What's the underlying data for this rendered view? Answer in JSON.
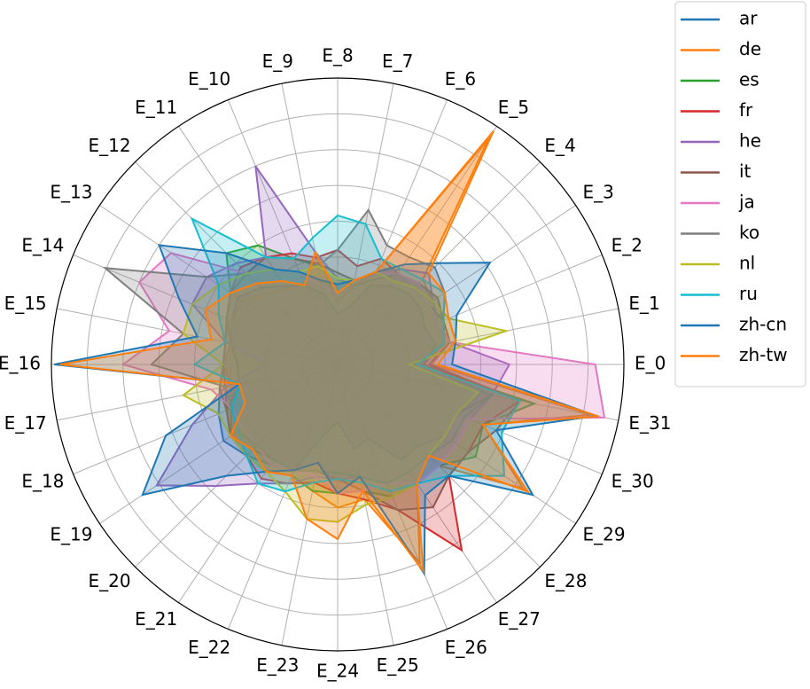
{
  "chart_data": {
    "type": "radar",
    "categories": [
      "E_0",
      "E_1",
      "E_2",
      "E_3",
      "E_4",
      "E_5",
      "E_6",
      "E_7",
      "E_8",
      "E_9",
      "E_10",
      "E_11",
      "E_12",
      "E_13",
      "E_14",
      "E_15",
      "E_16",
      "E_17",
      "E_18",
      "E_19",
      "E_20",
      "E_21",
      "E_22",
      "E_23",
      "E_24",
      "E_25",
      "E_26",
      "E_27",
      "E_28",
      "E_29",
      "E_30",
      "E_31"
    ],
    "ylim": [
      0,
      1
    ],
    "yticks": [
      0.125,
      0.25,
      0.375,
      0.5,
      0.625,
      0.75,
      0.875,
      1
    ],
    "grid": true,
    "legend": "outside-upper-right",
    "series": [
      {
        "name": "ar",
        "color": "#1f77b4",
        "values": [
          0.3,
          0.35,
          0.33,
          0.35,
          0.35,
          0.33,
          0.3,
          0.2,
          0.18,
          0.25,
          0.3,
          0.33,
          0.38,
          0.42,
          0.4,
          0.38,
          0.4,
          0.42,
          0.45,
          0.48,
          0.45,
          0.42,
          0.4,
          0.25,
          0.2,
          0.3,
          0.28,
          0.4,
          0.4,
          0.45,
          0.45,
          0.55
        ]
      },
      {
        "name": "de",
        "color": "#ff7f0e",
        "values": [
          0.33,
          0.4,
          0.38,
          0.4,
          0.42,
          0.95,
          0.35,
          0.28,
          0.22,
          0.4,
          0.3,
          0.32,
          0.35,
          0.4,
          0.4,
          0.38,
          0.4,
          0.38,
          0.4,
          0.45,
          0.42,
          0.45,
          0.42,
          0.45,
          0.5,
          0.48,
          0.75,
          0.5,
          0.5,
          0.78,
          0.55,
          0.9
        ]
      },
      {
        "name": "es",
        "color": "#2ca02c",
        "values": [
          0.28,
          0.38,
          0.4,
          0.38,
          0.4,
          0.38,
          0.32,
          0.28,
          0.3,
          0.35,
          0.4,
          0.5,
          0.55,
          0.45,
          0.42,
          0.38,
          0.35,
          0.35,
          0.42,
          0.45,
          0.45,
          0.45,
          0.42,
          0.45,
          0.45,
          0.45,
          0.5,
          0.5,
          0.5,
          0.58,
          0.55,
          0.7
        ]
      },
      {
        "name": "fr",
        "color": "#d62728",
        "values": [
          0.3,
          0.38,
          0.4,
          0.42,
          0.4,
          0.38,
          0.4,
          0.35,
          0.4,
          0.38,
          0.42,
          0.45,
          0.48,
          0.45,
          0.42,
          0.4,
          0.4,
          0.4,
          0.42,
          0.45,
          0.45,
          0.48,
          0.45,
          0.42,
          0.45,
          0.48,
          0.55,
          0.78,
          0.55,
          0.55,
          0.55,
          0.65
        ]
      },
      {
        "name": "he",
        "color": "#9467bd",
        "values": [
          0.6,
          0.4,
          0.38,
          0.4,
          0.45,
          0.4,
          0.35,
          0.3,
          0.3,
          0.4,
          0.75,
          0.45,
          0.5,
          0.55,
          0.55,
          0.4,
          0.25,
          0.4,
          0.55,
          0.76,
          0.6,
          0.5,
          0.45,
          0.4,
          0.4,
          0.4,
          0.45,
          0.5,
          0.5,
          0.5,
          0.5,
          0.55
        ]
      },
      {
        "name": "it",
        "color": "#8c564b",
        "values": [
          0.32,
          0.4,
          0.4,
          0.42,
          0.4,
          0.38,
          0.35,
          0.3,
          0.32,
          0.36,
          0.4,
          0.45,
          0.45,
          0.45,
          0.42,
          0.4,
          0.4,
          0.42,
          0.42,
          0.45,
          0.42,
          0.4,
          0.4,
          0.38,
          0.4,
          0.45,
          0.55,
          0.6,
          0.55,
          0.55,
          0.6,
          0.65
        ]
      },
      {
        "name": "ja",
        "color": "#e377c2",
        "values": [
          0.9,
          0.4,
          0.38,
          0.38,
          0.4,
          0.38,
          0.35,
          0.3,
          0.25,
          0.28,
          0.35,
          0.4,
          0.45,
          0.7,
          0.75,
          0.6,
          0.75,
          0.45,
          0.4,
          0.4,
          0.4,
          0.42,
          0.4,
          0.4,
          0.45,
          0.45,
          0.45,
          0.5,
          0.5,
          0.5,
          0.5,
          0.95
        ]
      },
      {
        "name": "ko",
        "color": "#7f7f7f",
        "values": [
          0.3,
          0.38,
          0.4,
          0.45,
          0.48,
          0.45,
          0.45,
          0.55,
          0.4,
          0.35,
          0.35,
          0.4,
          0.45,
          0.55,
          0.88,
          0.55,
          0.65,
          0.4,
          0.4,
          0.42,
          0.4,
          0.4,
          0.4,
          0.38,
          0.38,
          0.4,
          0.45,
          0.45,
          0.45,
          0.48,
          0.48,
          0.55
        ]
      },
      {
        "name": "nl",
        "color": "#bcbd22",
        "values": [
          0.25,
          0.6,
          0.42,
          0.4,
          0.38,
          0.35,
          0.35,
          0.3,
          0.3,
          0.35,
          0.35,
          0.4,
          0.45,
          0.5,
          0.55,
          0.55,
          0.4,
          0.55,
          0.45,
          0.45,
          0.45,
          0.45,
          0.48,
          0.55,
          0.55,
          0.5,
          0.5,
          0.5,
          0.45,
          0.45,
          0.45,
          0.5
        ]
      },
      {
        "name": "ru",
        "color": "#17becf",
        "values": [
          0.28,
          0.38,
          0.4,
          0.45,
          0.42,
          0.4,
          0.4,
          0.5,
          0.52,
          0.45,
          0.4,
          0.45,
          0.72,
          0.5,
          0.45,
          0.4,
          0.5,
          0.35,
          0.4,
          0.42,
          0.45,
          0.5,
          0.48,
          0.42,
          0.4,
          0.42,
          0.48,
          0.5,
          0.55,
          0.7,
          0.62,
          0.65
        ]
      },
      {
        "name": "zh-cn",
        "color": "#1f77b4",
        "values": [
          0.4,
          0.42,
          0.45,
          0.64,
          0.5,
          0.42,
          0.35,
          0.3,
          0.28,
          0.3,
          0.35,
          0.4,
          0.55,
          0.75,
          0.6,
          0.5,
          0.99,
          0.35,
          0.65,
          0.82,
          0.55,
          0.45,
          0.4,
          0.35,
          0.45,
          0.4,
          0.79,
          0.55,
          0.55,
          0.82,
          0.6,
          0.92
        ]
      },
      {
        "name": "zh-tw",
        "color": "#ff7f0e",
        "values": [
          0.35,
          0.42,
          0.42,
          0.45,
          0.45,
          0.98,
          0.35,
          0.3,
          0.25,
          0.4,
          0.3,
          0.35,
          0.4,
          0.45,
          0.5,
          0.45,
          0.97,
          0.35,
          0.35,
          0.45,
          0.42,
          0.45,
          0.42,
          0.55,
          0.61,
          0.45,
          0.78,
          0.5,
          0.45,
          0.8,
          0.55,
          0.93
        ]
      }
    ]
  }
}
